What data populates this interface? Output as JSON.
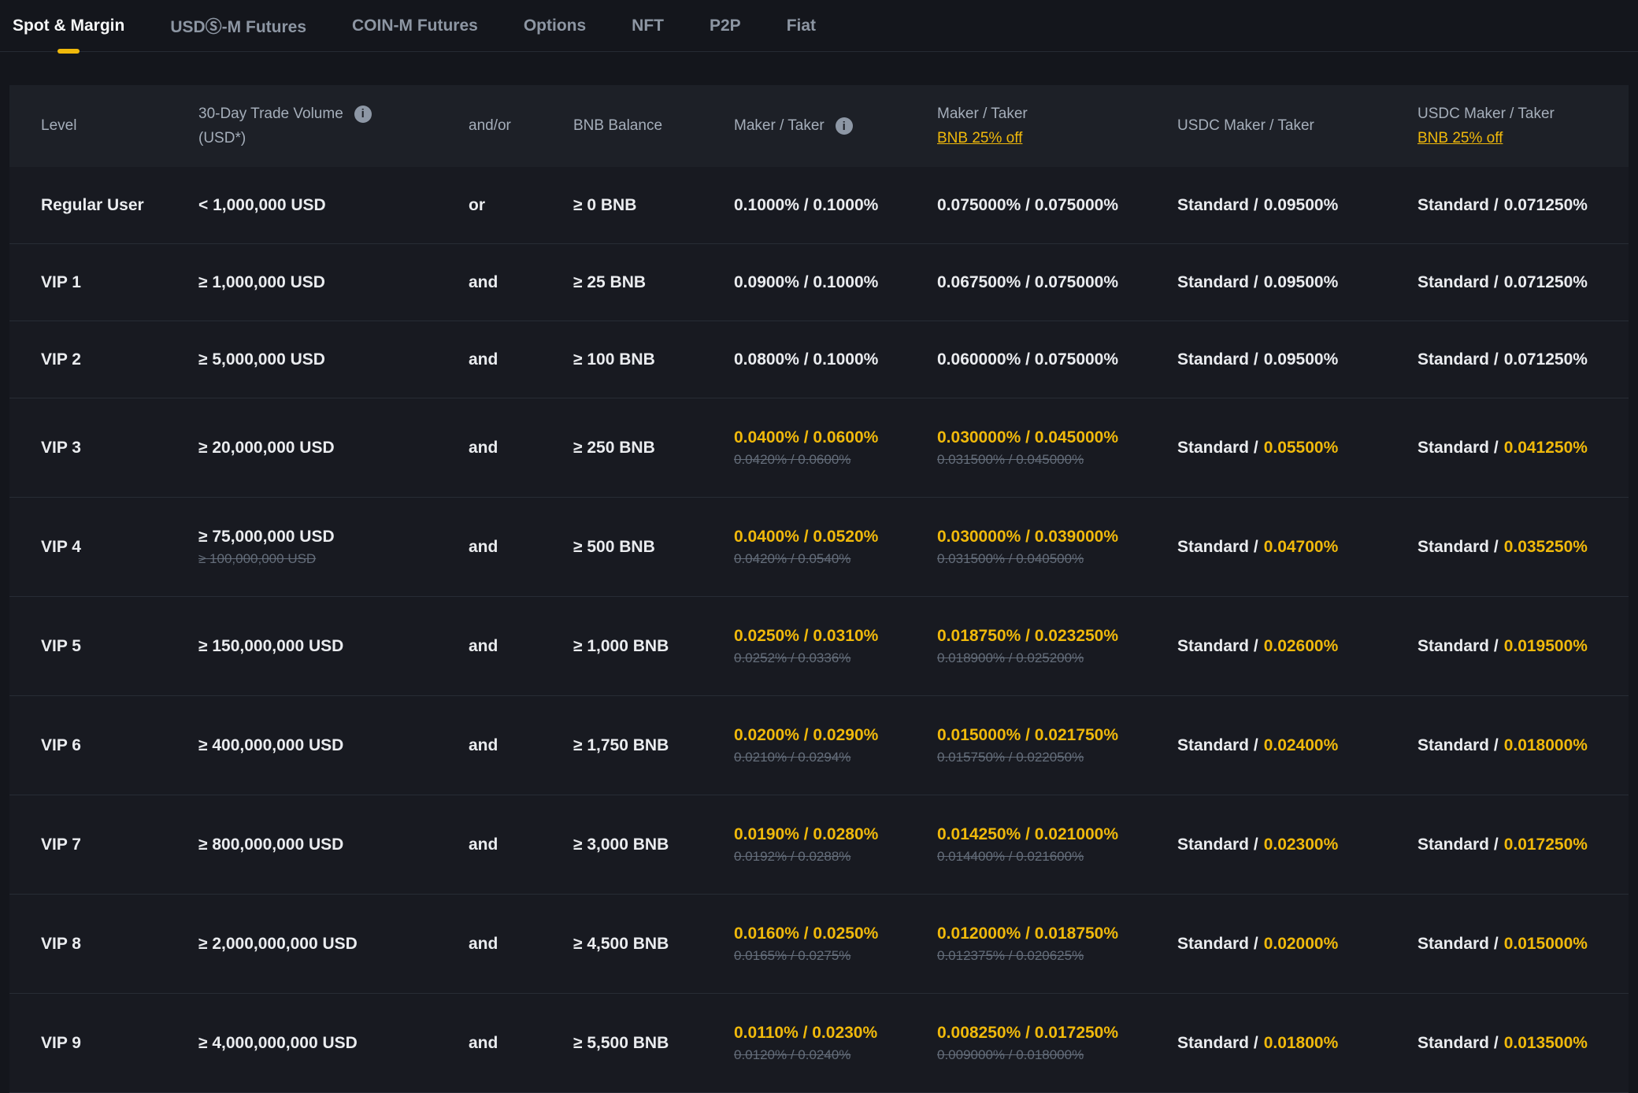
{
  "colors": {
    "accent": "#F0B90B",
    "background": "#181A20",
    "header_bg": "#1D2027"
  },
  "tabs": [
    {
      "label": "Spot & Margin",
      "active": true
    },
    {
      "label": "USDⓈ-M Futures",
      "active": false
    },
    {
      "label": "COIN-M Futures",
      "active": false
    },
    {
      "label": "Options",
      "active": false
    },
    {
      "label": "NFT",
      "active": false
    },
    {
      "label": "P2P",
      "active": false
    },
    {
      "label": "Fiat",
      "active": false
    }
  ],
  "table": {
    "headers": {
      "level": "Level",
      "volume_line1": "30-Day Trade Volume",
      "volume_line2": "(USD*)",
      "volume_info_icon": "info-icon",
      "andor": "and/or",
      "bnb_balance": "BNB Balance",
      "maker_taker": "Maker / Taker",
      "maker_taker_info_icon": "info-icon",
      "maker_taker_bnb_line1": "Maker / Taker",
      "maker_taker_bnb_link": "BNB 25% off",
      "usdc_maker_taker": "USDC Maker / Taker",
      "usdc_bnb_line1": "USDC Maker / Taker",
      "usdc_bnb_link": "BNB 25% off"
    },
    "rows": [
      {
        "level": "Regular User",
        "volume": "< 1,000,000 USD",
        "volume_old": null,
        "andor": "or",
        "bnb": "≥ 0 BNB",
        "mt": "0.1000% / 0.1000%",
        "mt_old": null,
        "mtb": "0.075000% / 0.075000%",
        "mtb_old": null,
        "usdc_prefix": "Standard /",
        "usdc_value": "0.09500%",
        "usdcb_prefix": "Standard /",
        "usdcb_value": "0.071250%",
        "highlight": false,
        "tall": false
      },
      {
        "level": "VIP 1",
        "volume": "≥ 1,000,000 USD",
        "volume_old": null,
        "andor": "and",
        "bnb": "≥ 25 BNB",
        "mt": "0.0900% / 0.1000%",
        "mt_old": null,
        "mtb": "0.067500% / 0.075000%",
        "mtb_old": null,
        "usdc_prefix": "Standard /",
        "usdc_value": "0.09500%",
        "usdcb_prefix": "Standard /",
        "usdcb_value": "0.071250%",
        "highlight": false,
        "tall": false
      },
      {
        "level": "VIP 2",
        "volume": "≥ 5,000,000 USD",
        "volume_old": null,
        "andor": "and",
        "bnb": "≥ 100 BNB",
        "mt": "0.0800% / 0.1000%",
        "mt_old": null,
        "mtb": "0.060000% / 0.075000%",
        "mtb_old": null,
        "usdc_prefix": "Standard /",
        "usdc_value": "0.09500%",
        "usdcb_prefix": "Standard /",
        "usdcb_value": "0.071250%",
        "highlight": false,
        "tall": false
      },
      {
        "level": "VIP 3",
        "volume": "≥ 20,000,000 USD",
        "volume_old": null,
        "andor": "and",
        "bnb": "≥ 250 BNB",
        "mt": "0.0400% / 0.0600%",
        "mt_old": "0.0420% / 0.0600%",
        "mtb": "0.030000% / 0.045000%",
        "mtb_old": "0.031500% / 0.045000%",
        "usdc_prefix": "Standard /",
        "usdc_value": "0.05500%",
        "usdcb_prefix": "Standard /",
        "usdcb_value": "0.041250%",
        "highlight": true,
        "tall": true
      },
      {
        "level": "VIP 4",
        "volume": "≥ 75,000,000 USD",
        "volume_old": "≥ 100,000,000 USD",
        "andor": "and",
        "bnb": "≥ 500 BNB",
        "mt": "0.0400% / 0.0520%",
        "mt_old": "0.0420% / 0.0540%",
        "mtb": "0.030000% / 0.039000%",
        "mtb_old": "0.031500% / 0.040500%",
        "usdc_prefix": "Standard /",
        "usdc_value": "0.04700%",
        "usdcb_prefix": "Standard /",
        "usdcb_value": "0.035250%",
        "highlight": true,
        "tall": true
      },
      {
        "level": "VIP 5",
        "volume": "≥ 150,000,000 USD",
        "volume_old": null,
        "andor": "and",
        "bnb": "≥ 1,000 BNB",
        "mt": "0.0250% / 0.0310%",
        "mt_old": "0.0252% / 0.0336%",
        "mtb": "0.018750% / 0.023250%",
        "mtb_old": "0.018900% / 0.025200%",
        "usdc_prefix": "Standard /",
        "usdc_value": "0.02600%",
        "usdcb_prefix": "Standard /",
        "usdcb_value": "0.019500%",
        "highlight": true,
        "tall": true
      },
      {
        "level": "VIP 6",
        "volume": "≥ 400,000,000 USD",
        "volume_old": null,
        "andor": "and",
        "bnb": "≥ 1,750 BNB",
        "mt": "0.0200% / 0.0290%",
        "mt_old": "0.0210% / 0.0294%",
        "mtb": "0.015000% / 0.021750%",
        "mtb_old": "0.015750% / 0.022050%",
        "usdc_prefix": "Standard /",
        "usdc_value": "0.02400%",
        "usdcb_prefix": "Standard /",
        "usdcb_value": "0.018000%",
        "highlight": true,
        "tall": true
      },
      {
        "level": "VIP 7",
        "volume": "≥ 800,000,000 USD",
        "volume_old": null,
        "andor": "and",
        "bnb": "≥ 3,000 BNB",
        "mt": "0.0190% / 0.0280%",
        "mt_old": "0.0192% / 0.0288%",
        "mtb": "0.014250% / 0.021000%",
        "mtb_old": "0.014400% / 0.021600%",
        "usdc_prefix": "Standard /",
        "usdc_value": "0.02300%",
        "usdcb_prefix": "Standard /",
        "usdcb_value": "0.017250%",
        "highlight": true,
        "tall": true
      },
      {
        "level": "VIP 8",
        "volume": "≥ 2,000,000,000 USD",
        "volume_old": null,
        "andor": "and",
        "bnb": "≥ 4,500 BNB",
        "mt": "0.0160% / 0.0250%",
        "mt_old": "0.0165% / 0.0275%",
        "mtb": "0.012000% / 0.018750%",
        "mtb_old": "0.012375% / 0.020625%",
        "usdc_prefix": "Standard /",
        "usdc_value": "0.02000%",
        "usdcb_prefix": "Standard /",
        "usdcb_value": "0.015000%",
        "highlight": true,
        "tall": true
      },
      {
        "level": "VIP 9",
        "volume": "≥ 4,000,000,000 USD",
        "volume_old": null,
        "andor": "and",
        "bnb": "≥ 5,500 BNB",
        "mt": "0.0110% / 0.0230%",
        "mt_old": "0.0120% / 0.0240%",
        "mtb": "0.008250% / 0.017250%",
        "mtb_old": "0.009000% / 0.018000%",
        "usdc_prefix": "Standard /",
        "usdc_value": "0.01800%",
        "usdcb_prefix": "Standard /",
        "usdcb_value": "0.013500%",
        "highlight": true,
        "tall": true
      }
    ]
  }
}
